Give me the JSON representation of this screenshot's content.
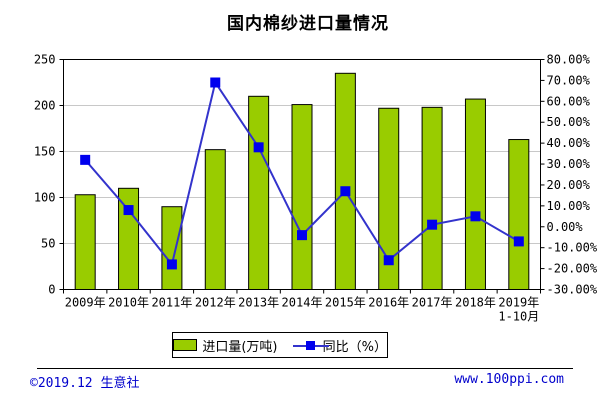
{
  "title": "国内棉纱进口量情况",
  "chart_data": {
    "type": "bar",
    "combo": "bar+line",
    "title": "国内棉纱进口量情况",
    "categories": [
      "2009年",
      "2010年",
      "2011年",
      "2012年",
      "2013年",
      "2014年",
      "2015年",
      "2016年",
      "2017年",
      "2018年",
      "2019年"
    ],
    "last_category_note": "1-10月",
    "series": [
      {
        "name": "进口量(万吨)",
        "type": "bar",
        "axis": "left",
        "values": [
          103,
          110,
          90,
          152,
          210,
          201,
          235,
          197,
          198,
          207,
          163
        ]
      },
      {
        "name": "同比（%）",
        "type": "line",
        "axis": "right",
        "values": [
          32,
          8,
          -18,
          69,
          38,
          -4,
          17,
          -16,
          1,
          5,
          -7
        ]
      }
    ],
    "left_axis": {
      "min": 0,
      "max": 250,
      "step": 50,
      "ticks": [
        "0",
        "50",
        "100",
        "150",
        "200",
        "250"
      ]
    },
    "right_axis": {
      "min": -30,
      "max": 80,
      "step": 10,
      "ticks": [
        "-30.00%",
        "-20.00%",
        "-10.00%",
        "0.00%",
        "10.00%",
        "20.00%",
        "30.00%",
        "40.00%",
        "50.00%",
        "60.00%",
        "70.00%",
        "80.00%"
      ]
    },
    "grid": true,
    "legend_position": "bottom",
    "colors": {
      "bar_fill": "#99CC00",
      "bar_border": "#000000",
      "line": "#3333CC",
      "marker_fill": "#0000EE",
      "grid": "#C8C8C8",
      "axis": "#000000"
    }
  },
  "legend": {
    "bar_label": "进口量(万吨)",
    "line_label": "同比（%）"
  },
  "footer": {
    "copyright": "©2019.12 生意社",
    "website": "www.100ppi.com",
    "text_color": "#0000CC"
  }
}
